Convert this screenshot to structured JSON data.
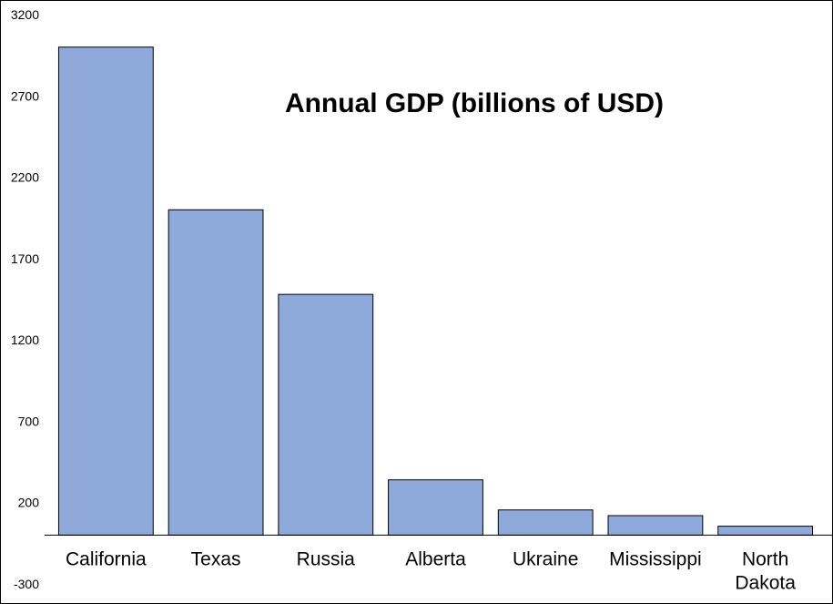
{
  "chart_data": {
    "type": "bar",
    "title": "Annual GDP (billions of USD)",
    "xlabel": "",
    "ylabel": "",
    "categories": [
      "California",
      "Texas",
      "Russia",
      "Alberta",
      "Ukraine",
      "Mississippi",
      "North Dakota"
    ],
    "category_lines": [
      [
        "California"
      ],
      [
        "Texas"
      ],
      [
        "Russia"
      ],
      [
        "Alberta"
      ],
      [
        "Ukraine"
      ],
      [
        "Mississippi"
      ],
      [
        "North",
        "Dakota"
      ]
    ],
    "values": [
      3000,
      2000,
      1480,
      340,
      155,
      120,
      55
    ],
    "ylim": [
      -300,
      3200
    ],
    "yticks": [
      -300,
      200,
      700,
      1200,
      1700,
      2200,
      2700,
      3200
    ],
    "grid": false,
    "legend": "none",
    "colors": {
      "bar_fill": "#8eaadb",
      "bar_stroke": "#000000",
      "axis": "#000000"
    }
  }
}
